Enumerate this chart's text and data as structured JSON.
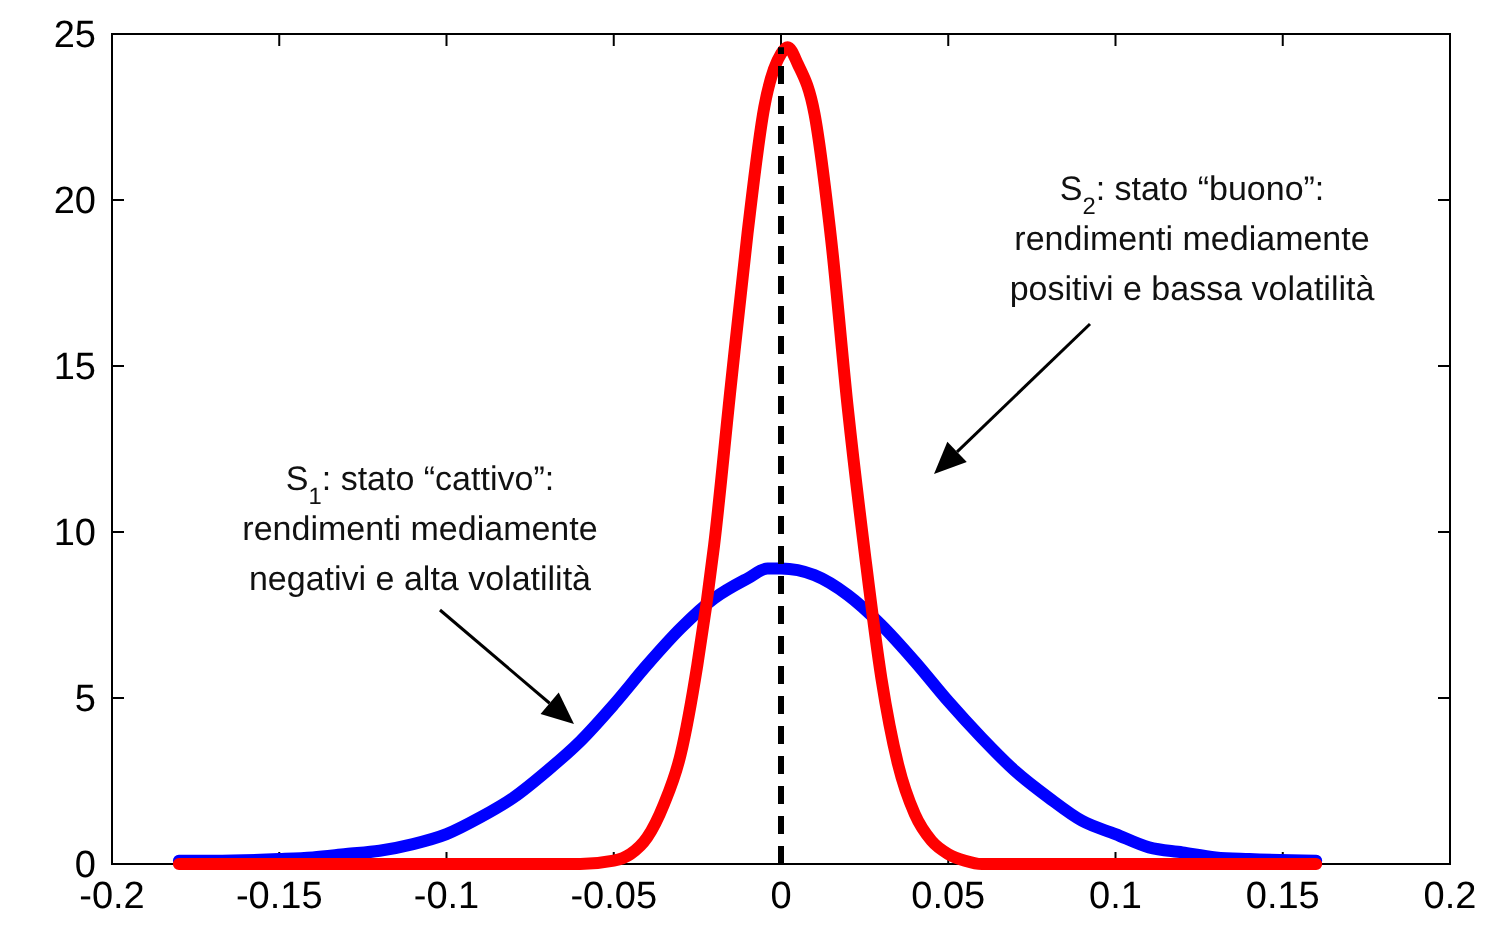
{
  "chart_data": {
    "type": "line",
    "xlim": [
      -0.2,
      0.2
    ],
    "xticks": [
      -0.2,
      -0.15,
      -0.1,
      -0.05,
      0,
      0.05,
      0.1,
      0.15,
      0.2
    ],
    "ylim": [
      0,
      25
    ],
    "yticks": [
      0,
      5,
      10,
      15,
      20,
      25
    ],
    "grid": false,
    "series": [
      {
        "color": "#0000ff",
        "x": [
          -0.18,
          -0.17,
          -0.15,
          -0.14,
          -0.13,
          -0.12,
          -0.11,
          -0.1,
          -0.09,
          -0.08,
          -0.07,
          -0.06,
          -0.05,
          -0.04,
          -0.03,
          -0.02,
          -0.01,
          -0.004,
          0,
          0.01,
          0.02,
          0.03,
          0.04,
          0.05,
          0.06,
          0.07,
          0.08,
          0.09,
          0.1,
          0.11,
          0.12,
          0.13,
          0.14,
          0.16
        ],
        "values": [
          0.1,
          0.1,
          0.15,
          0.2,
          0.3,
          0.4,
          0.6,
          0.9,
          1.4,
          2.0,
          2.8,
          3.7,
          4.8,
          6.0,
          7.1,
          8.0,
          8.6,
          8.9,
          8.9,
          8.7,
          8.1,
          7.2,
          6.1,
          4.9,
          3.8,
          2.8,
          2.0,
          1.3,
          0.9,
          0.5,
          0.35,
          0.2,
          0.15,
          0.1
        ]
      },
      {
        "color": "#ff0000",
        "x": [
          -0.18,
          -0.06,
          -0.05,
          -0.045,
          -0.04,
          -0.035,
          -0.03,
          -0.025,
          -0.02,
          -0.015,
          -0.01,
          -0.005,
          0,
          0.002,
          0.005,
          0.01,
          0.015,
          0.02,
          0.025,
          0.03,
          0.035,
          0.04,
          0.045,
          0.05,
          0.055,
          0.06,
          0.16
        ],
        "values": [
          0,
          0,
          0.1,
          0.3,
          0.8,
          1.8,
          3.3,
          6.0,
          9.6,
          14.4,
          19.0,
          22.8,
          24.4,
          24.6,
          24.1,
          22.6,
          18.8,
          13.7,
          9.4,
          5.6,
          3.0,
          1.5,
          0.7,
          0.3,
          0.1,
          0,
          0
        ]
      }
    ],
    "ref_lines": [
      {
        "axis": "x",
        "value": 0,
        "color": "#000000",
        "line_style": "dashed"
      }
    ],
    "annotations": [
      "S$_{1}$: stato “cattivo”:\nrendimenti mediamente\nnegativi e alta volatilità",
      "S$_{2}$: stato “buono”:\nrendimenti mediamente\npositivi e bassa volatilità"
    ]
  }
}
